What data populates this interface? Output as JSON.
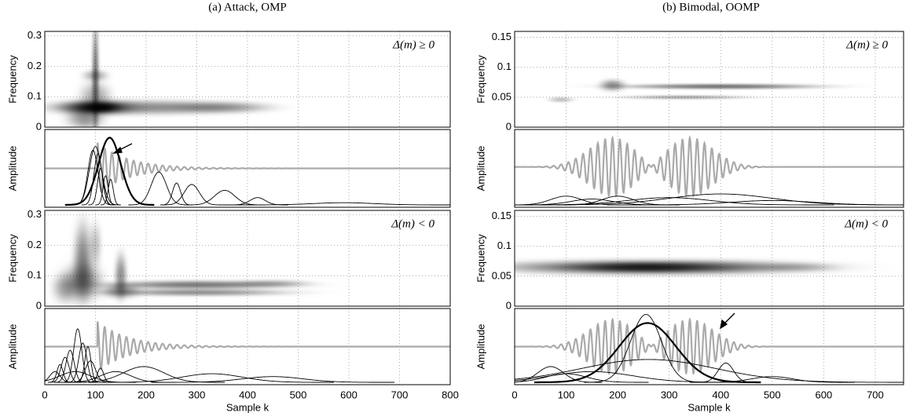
{
  "chart_data": [
    {
      "type": "spectrogram",
      "title": "(a) Attack, OMP",
      "xlabel": "Sample k",
      "xlim": [
        0,
        800
      ],
      "xticks": [
        0,
        100,
        200,
        300,
        400,
        500,
        600,
        700,
        800
      ],
      "panels": [
        {
          "kind": "tf",
          "ylabel": "Frequency",
          "ylim": [
            0,
            0.315
          ],
          "yticks": [
            0,
            0.1,
            0.2,
            0.3
          ],
          "annotation": "Δ(m) ≥ 0",
          "blobs": [
            {
              "k": 100,
              "f": 0.16,
              "dk": 6,
              "df": 0.16,
              "intensity": 0.55
            },
            {
              "k": 100,
              "f": 0.065,
              "dk": 60,
              "df": 0.02,
              "intensity": 0.85
            },
            {
              "k": 110,
              "f": 0.065,
              "dk": 30,
              "df": 0.012,
              "intensity": 0.9
            },
            {
              "k": 200,
              "f": 0.065,
              "dk": 150,
              "df": 0.02,
              "intensity": 0.45
            },
            {
              "k": 350,
              "f": 0.065,
              "dk": 80,
              "df": 0.015,
              "intensity": 0.35
            },
            {
              "k": 100,
              "f": 0.17,
              "dk": 20,
              "df": 0.015,
              "intensity": 0.35
            },
            {
              "k": 80,
              "f": 0.03,
              "dk": 30,
              "df": 0.03,
              "intensity": 0.45
            },
            {
              "k": 100,
              "f": 0.1,
              "dk": 25,
              "df": 0.04,
              "intensity": 0.35
            }
          ]
        },
        {
          "kind": "amp",
          "ylabel": "Amplitude",
          "waveform": {
            "envelope": "exp",
            "onset": 104,
            "freq": 0.07,
            "tau": 60,
            "amp": 0.35,
            "offset": 0.5
          },
          "atoms": [
            {
              "k": 128,
              "s": 22,
              "h": 0.92,
              "bold": true
            },
            {
              "k": 100,
              "s": 12,
              "h": 0.8
            },
            {
              "k": 95,
              "s": 10,
              "h": 0.75
            },
            {
              "k": 105,
              "s": 8,
              "h": 0.7
            },
            {
              "k": 110,
              "s": 6,
              "h": 0.5
            },
            {
              "k": 225,
              "s": 15,
              "h": 0.45
            },
            {
              "k": 290,
              "s": 15,
              "h": 0.28
            },
            {
              "k": 355,
              "s": 20,
              "h": 0.2
            },
            {
              "k": 420,
              "s": 15,
              "h": 0.1
            },
            {
              "k": 260,
              "s": 8,
              "h": 0.3
            },
            {
              "k": 590,
              "s": 60,
              "h": 0.03
            },
            {
              "k": 120,
              "s": 5,
              "h": 0.4
            },
            {
              "k": 130,
              "s": 5,
              "h": 0.35
            }
          ]
        },
        {
          "kind": "tf",
          "ylabel": "Frequency",
          "ylim": [
            0,
            0.315
          ],
          "yticks": [
            0,
            0.1,
            0.2,
            0.3
          ],
          "annotation": "Δ(m) < 0",
          "blobs": [
            {
              "k": 75,
              "f": 0.15,
              "dk": 15,
              "df": 0.1,
              "intensity": 0.5
            },
            {
              "k": 75,
              "f": 0.08,
              "dk": 30,
              "df": 0.05,
              "intensity": 0.55
            },
            {
              "k": 150,
              "f": 0.1,
              "dk": 10,
              "df": 0.06,
              "intensity": 0.45
            },
            {
              "k": 300,
              "f": 0.07,
              "dk": 150,
              "df": 0.012,
              "intensity": 0.55
            },
            {
              "k": 300,
              "f": 0.045,
              "dk": 150,
              "df": 0.01,
              "intensity": 0.45
            },
            {
              "k": 450,
              "f": 0.075,
              "dk": 60,
              "df": 0.01,
              "intensity": 0.25
            },
            {
              "k": 150,
              "f": 0.05,
              "dk": 30,
              "df": 0.02,
              "intensity": 0.45
            },
            {
              "k": 40,
              "f": 0.06,
              "dk": 20,
              "df": 0.04,
              "intensity": 0.35
            },
            {
              "k": 100,
              "f": 0.2,
              "dk": 10,
              "df": 0.06,
              "intensity": 0.25
            }
          ]
        },
        {
          "kind": "amp",
          "ylabel": "Amplitude",
          "waveform": {
            "envelope": "exp",
            "onset": 104,
            "freq": 0.07,
            "tau": 60,
            "amp": 0.35,
            "offset": 0.5
          },
          "atoms": [
            {
              "k": 65,
              "s": 8,
              "h": 0.75
            },
            {
              "k": 75,
              "s": 8,
              "h": 0.55
            },
            {
              "k": 50,
              "s": 8,
              "h": 0.45
            },
            {
              "k": 40,
              "s": 8,
              "h": 0.35
            },
            {
              "k": 85,
              "s": 6,
              "h": 0.5
            },
            {
              "k": 30,
              "s": 6,
              "h": 0.25
            },
            {
              "k": 90,
              "s": 10,
              "h": 0.3
            },
            {
              "k": 195,
              "s": 40,
              "h": 0.22
            },
            {
              "k": 140,
              "s": 30,
              "h": 0.15
            },
            {
              "k": 330,
              "s": 60,
              "h": 0.12
            },
            {
              "k": 450,
              "s": 60,
              "h": 0.08
            },
            {
              "k": 60,
              "s": 30,
              "h": 0.15
            },
            {
              "k": 20,
              "s": 10,
              "h": 0.15
            },
            {
              "k": 110,
              "s": 6,
              "h": 0.2
            }
          ]
        }
      ]
    },
    {
      "type": "spectrogram",
      "title": "(b) Bimodal, OOMP",
      "xlabel": "Sample k",
      "xlim": [
        0,
        755
      ],
      "xticks": [
        0,
        100,
        200,
        300,
        400,
        500,
        600,
        700
      ],
      "panels": [
        {
          "kind": "tf",
          "ylabel": "Frequency",
          "ylim": [
            0,
            0.16
          ],
          "yticks": [
            0,
            0.05,
            0.1,
            0.15
          ],
          "annotation": "Δ(m) ≥ 0",
          "blobs": [
            {
              "k": 190,
              "f": 0.07,
              "dk": 20,
              "df": 0.008,
              "intensity": 0.45
            },
            {
              "k": 400,
              "f": 0.068,
              "dk": 160,
              "df": 0.004,
              "intensity": 0.55
            },
            {
              "k": 330,
              "f": 0.05,
              "dk": 100,
              "df": 0.003,
              "intensity": 0.35
            },
            {
              "k": 90,
              "f": 0.046,
              "dk": 20,
              "df": 0.004,
              "intensity": 0.25
            }
          ]
        },
        {
          "kind": "amp",
          "ylabel": "Amplitude",
          "waveform": {
            "envelope": "gauss",
            "centers": [
              190,
              340
            ],
            "sigma": 45,
            "freq": 0.07,
            "amp": 0.4,
            "offset": 0.52
          },
          "atoms": [
            {
              "k": 100,
              "s": 30,
              "h": 0.12
            },
            {
              "k": 200,
              "s": 30,
              "h": 0.12
            },
            {
              "k": 400,
              "s": 100,
              "h": 0.15
            },
            {
              "k": 300,
              "s": 80,
              "h": 0.1
            },
            {
              "k": 500,
              "s": 80,
              "h": 0.06
            },
            {
              "k": 150,
              "s": 40,
              "h": 0.08
            }
          ]
        },
        {
          "kind": "tf",
          "ylabel": "Frequency",
          "ylim": [
            0,
            0.16
          ],
          "yticks": [
            0,
            0.05,
            0.1,
            0.15
          ],
          "annotation": "Δ(m) < 0",
          "blobs": [
            {
              "k": 270,
              "f": 0.065,
              "dk": 240,
              "df": 0.01,
              "intensity": 0.8
            },
            {
              "k": 250,
              "f": 0.065,
              "dk": 100,
              "df": 0.006,
              "intensity": 0.6
            },
            {
              "k": 550,
              "f": 0.065,
              "dk": 60,
              "df": 0.006,
              "intensity": 0.2
            }
          ]
        },
        {
          "kind": "amp",
          "ylabel": "Amplitude",
          "waveform": {
            "envelope": "gauss",
            "centers": [
              190,
              340
            ],
            "sigma": 45,
            "freq": 0.07,
            "amp": 0.38,
            "offset": 0.5
          },
          "atoms": [
            {
              "k": 258,
              "s": 55,
              "h": 0.83,
              "bold": true
            },
            {
              "k": 255,
              "s": 30,
              "h": 0.95
            },
            {
              "k": 410,
              "s": 15,
              "h": 0.27
            },
            {
              "k": 70,
              "s": 25,
              "h": 0.22
            },
            {
              "k": 260,
              "s": 130,
              "h": 0.32
            },
            {
              "k": 100,
              "s": 40,
              "h": 0.12
            },
            {
              "k": 500,
              "s": 40,
              "h": 0.08
            },
            {
              "k": 150,
              "s": 80,
              "h": 0.15
            }
          ]
        }
      ]
    }
  ]
}
